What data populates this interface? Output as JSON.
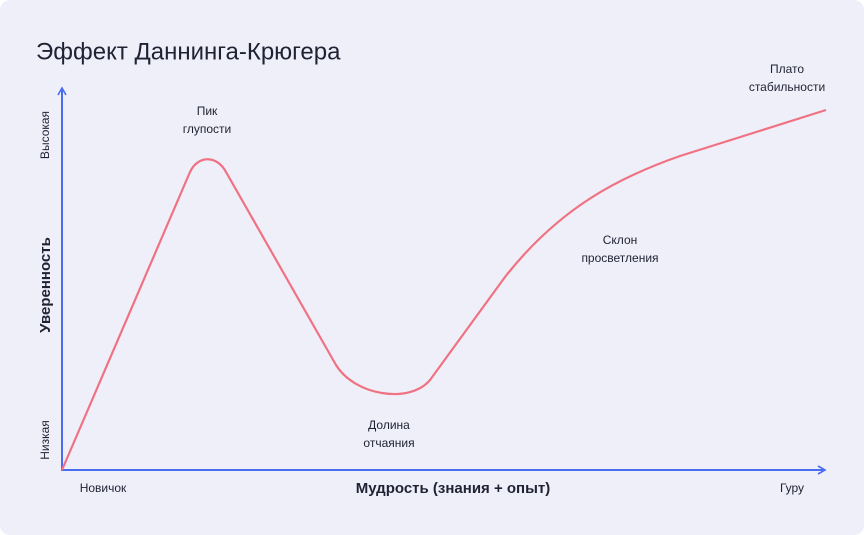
{
  "title": "Эффект Даннинга-Крюгера",
  "y_axis": {
    "label": "Уверенность",
    "high": "Высокая",
    "low": "Низкая"
  },
  "x_axis": {
    "label": "Мудрость (знания + опыт)",
    "start": "Новичок",
    "end": "Гуру"
  },
  "annotations": [
    {
      "lines": [
        "Пик",
        "глупости"
      ]
    },
    {
      "lines": [
        "Долина",
        "отчаяния"
      ]
    },
    {
      "lines": [
        "Склон",
        "просветления"
      ]
    },
    {
      "lines": [
        "Плато",
        "стабильности"
      ]
    }
  ]
}
